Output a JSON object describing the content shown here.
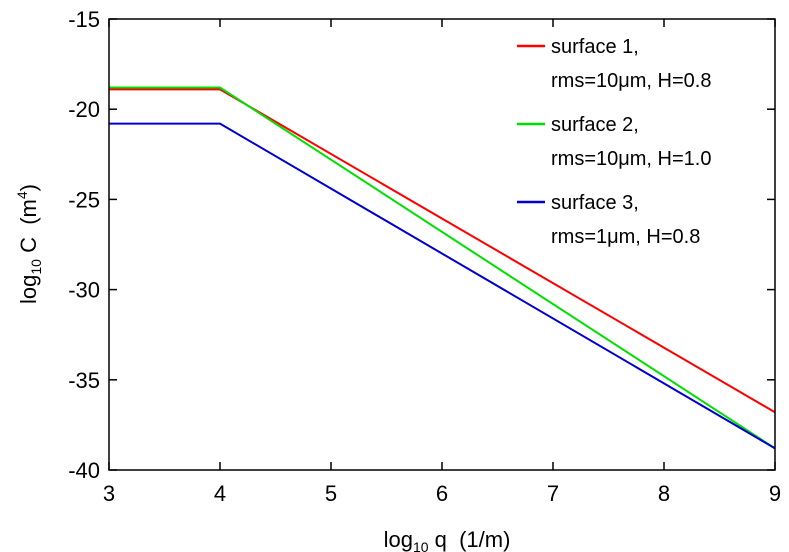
{
  "chart_data": {
    "type": "line",
    "xlabel": {
      "main": "log",
      "sub": "10",
      "rest": " q  (1/m)"
    },
    "ylabel": {
      "main": "log",
      "sub": "10",
      "rest": " C  (m",
      "sup": "4",
      "close": ")"
    },
    "xlim": [
      3,
      9
    ],
    "ylim": [
      -40,
      -15
    ],
    "x_ticks": [
      3,
      4,
      5,
      6,
      7,
      8,
      9
    ],
    "y_ticks": [
      -15,
      -20,
      -25,
      -30,
      -35,
      -40
    ],
    "grid": false,
    "legend_position": "top-right",
    "series": [
      {
        "name_line1": "surface 1,",
        "name_line2": "rms=10μm, H=0.8",
        "color": "#ff0000",
        "x": [
          3,
          4,
          9
        ],
        "y": [
          -18.9,
          -18.9,
          -36.8
        ]
      },
      {
        "name_line1": "surface 2,",
        "name_line2": "rms=10μm, H=1.0",
        "color": "#00e000",
        "x": [
          3,
          4,
          9
        ],
        "y": [
          -18.8,
          -18.8,
          -38.8
        ]
      },
      {
        "name_line1": "surface 3,",
        "name_line2": "rms=1μm, H=0.8",
        "color": "#0000d0",
        "x": [
          3,
          4,
          9
        ],
        "y": [
          -20.8,
          -20.8,
          -38.8
        ]
      }
    ]
  }
}
